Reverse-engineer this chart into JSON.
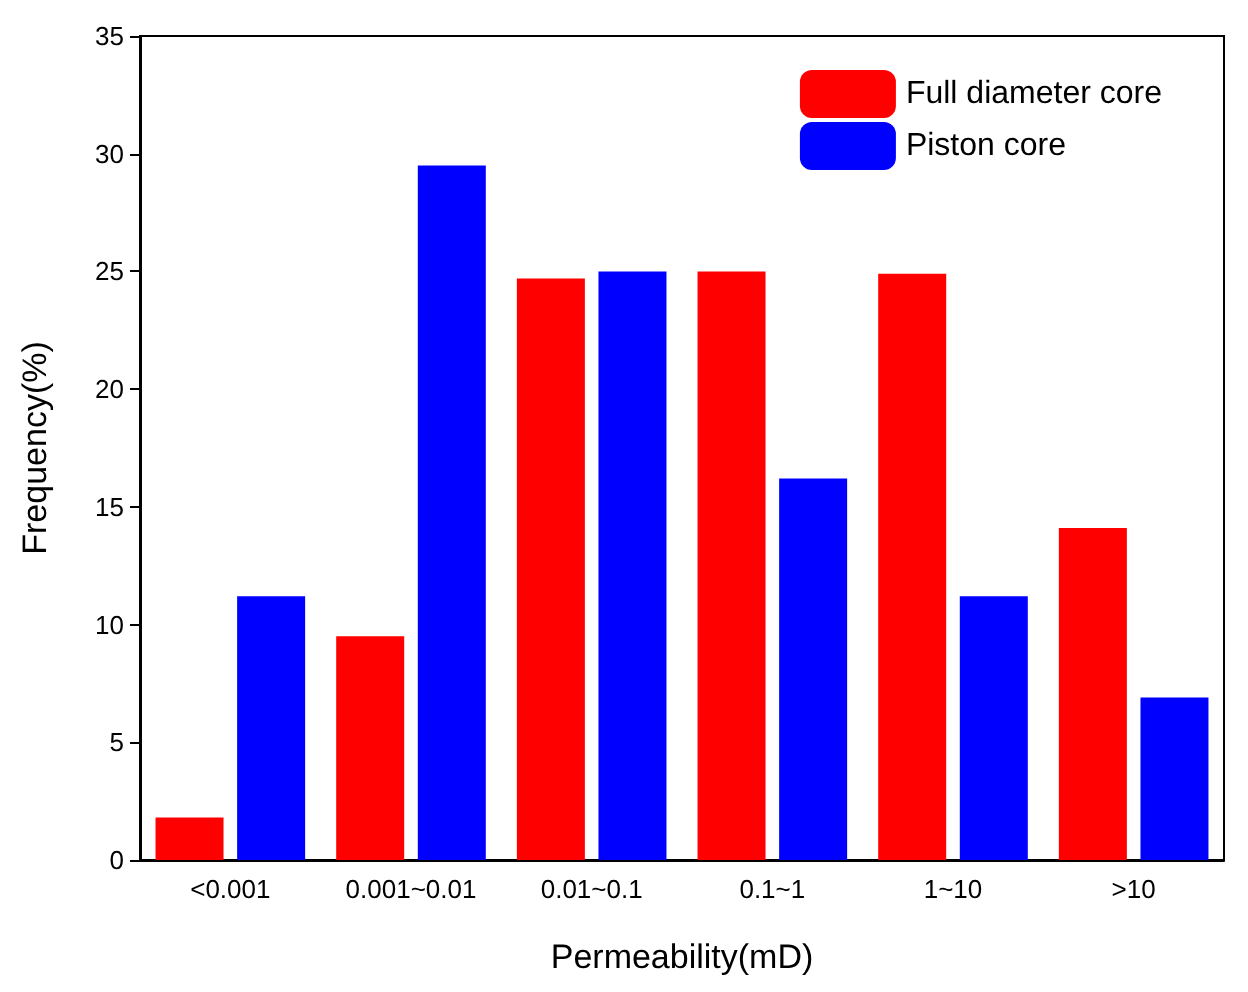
{
  "chart_data": {
    "type": "bar",
    "xlabel": "Permeability(mD)",
    "ylabel": "Frequency(%)",
    "categories": [
      "<0.001",
      "0.001~0.01",
      "0.01~0.1",
      "0.1~1",
      "1~10",
      ">10"
    ],
    "series": [
      {
        "name": "Full diameter core",
        "color": "#ff0000",
        "values": [
          1.8,
          9.5,
          24.7,
          25.0,
          24.9,
          14.1
        ]
      },
      {
        "name": "Piston core",
        "color": "#0000ff",
        "values": [
          11.2,
          29.5,
          25.0,
          16.2,
          11.2,
          6.9
        ]
      }
    ],
    "ylim": [
      0,
      35
    ],
    "yticks": [
      0,
      5,
      10,
      15,
      20,
      25,
      30,
      35
    ],
    "grid": false,
    "legend": "top right"
  }
}
